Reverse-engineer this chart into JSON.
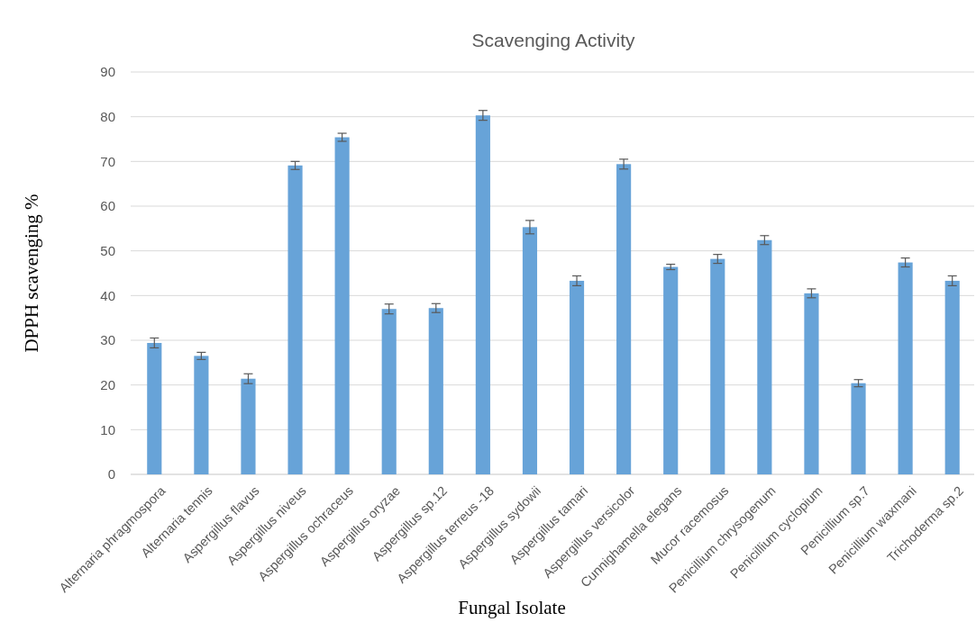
{
  "chart_data": {
    "type": "bar",
    "title": "Scavenging Activity",
    "xlabel": "Fungal Isolate",
    "ylabel": "DPPH scavenging %",
    "categories": [
      "Alternaria phragmospora",
      "Alternaria tennis",
      "Aspergillus flavus",
      "Aspergillus niveus",
      "Aspergillus ochraceus",
      "Aspergillus oryzae",
      "Aspergillus sp.12",
      "Aspergillus terreus -18",
      "Aspergillus sydowii",
      "Aspergillus tamari",
      "Aspergillus versicolor",
      "Cunnighamella elegans",
      "Mucor racemosus",
      "Penicillium chrysogenum",
      "Penicillium cyclopium",
      "Penicillium sp.7",
      "Penicillium waxmani",
      "Trichoderma sp.2"
    ],
    "values": [
      29.4,
      26.5,
      21.4,
      69.1,
      75.4,
      37.0,
      37.2,
      80.3,
      55.3,
      43.3,
      69.4,
      46.4,
      48.2,
      52.4,
      40.5,
      20.4,
      47.4,
      43.3
    ],
    "errors": [
      1.1,
      0.8,
      1.1,
      0.9,
      0.9,
      1.1,
      1.0,
      1.1,
      1.5,
      1.1,
      1.1,
      0.6,
      1.0,
      1.0,
      1.0,
      0.8,
      1.0,
      1.1
    ],
    "color": "#67a3d8",
    "ylim": [
      0,
      90
    ],
    "yticks": [
      0,
      10,
      20,
      30,
      40,
      50,
      60,
      70,
      80,
      90
    ],
    "grid": "y"
  }
}
